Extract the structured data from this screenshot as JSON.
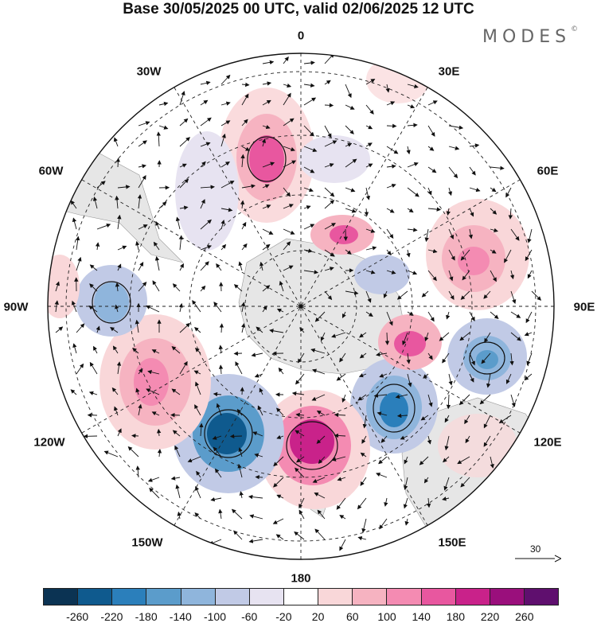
{
  "title": "Base 30/05/2025 00 UTC, valid 02/06/2025 12 UTC",
  "brand": {
    "name": "MODES",
    "mark": "©"
  },
  "longitude_labels": [
    "0",
    "30E",
    "60E",
    "90E",
    "120E",
    "150E",
    "180",
    "150W",
    "120W",
    "90W",
    "60W",
    "30W"
  ],
  "reference_vector": {
    "value": "30"
  },
  "colorbar": {
    "colors": [
      "#0b3353",
      "#0f5a8e",
      "#2b7fbb",
      "#5b9ccb",
      "#8fb5dc",
      "#c1cae6",
      "#e7e3f1",
      "#ffffff",
      "#f9d7d9",
      "#f6b3c1",
      "#f48bb2",
      "#e8579f",
      "#c9228a",
      "#9a0f7c",
      "#5f0f6e"
    ],
    "ticks": [
      "-260",
      "-220",
      "-180",
      "-140",
      "-100",
      "-60",
      "-20",
      "20",
      "60",
      "100",
      "140",
      "180",
      "220",
      "260"
    ]
  },
  "map_style": {
    "projection": "south-polar-stereographic",
    "land_color": "#e8e8e8",
    "grid": "dashed"
  }
}
